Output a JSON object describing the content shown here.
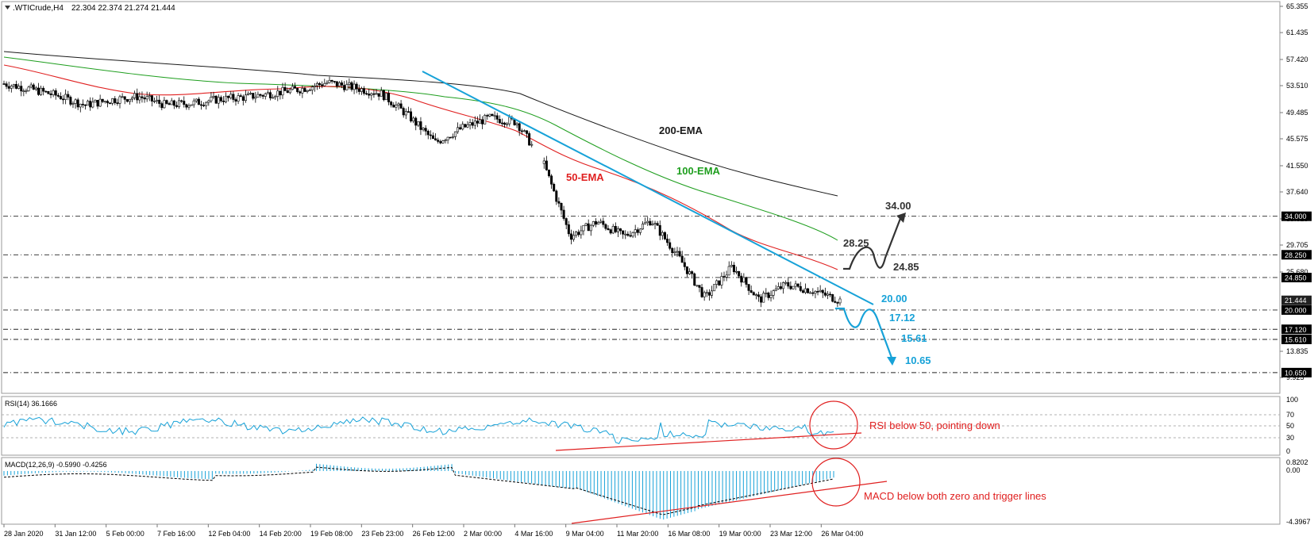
{
  "header": {
    "symbol": ".WTICrude,H4",
    "ohlc": "22.304 22.374 21.274 21.444"
  },
  "rsi": {
    "title": "RSI(14) 36.1666",
    "ticks": [
      "100",
      "70",
      "50",
      "30",
      "0"
    ]
  },
  "macd": {
    "title": "MACD(12,26,9) -0.5990 -0.4256",
    "ticks": [
      "0.8202",
      "0.00",
      "-4.3967"
    ]
  },
  "price_ticks": [
    "65.355",
    "61.435",
    "57.420",
    "53.510",
    "49.485",
    "45.575",
    "41.550",
    "37.640",
    "33.615",
    "29.705",
    "25.680",
    "21.444",
    "17.120",
    "13.835",
    "9.925"
  ],
  "level_labels": [
    "34.000",
    "28.250",
    "24.850",
    "21.444",
    "20.000",
    "17.120",
    "15.610",
    "10.650"
  ],
  "time_labels": [
    "28 Jan 2020",
    "31 Jan 12:00",
    "5 Feb 00:00",
    "7 Feb 16:00",
    "12 Feb 04:00",
    "14 Feb 20:00",
    "19 Feb 08:00",
    "23 Feb 23:00",
    "26 Feb 12:00",
    "2 Mar 00:00",
    "4 Mar 16:00",
    "9 Mar 04:00",
    "11 Mar 20:00",
    "16 Mar 08:00",
    "19 Mar 00:00",
    "23 Mar 12:00",
    "26 Mar 04:00"
  ],
  "annotations": {
    "ema200": "200-EMA",
    "ema100": "100-EMA",
    "ema50": "50-EMA",
    "up_target": "34.00",
    "r1": "28.25",
    "r2": "24.85",
    "s1": "20.00",
    "s2": "17.12",
    "s3": "15.61",
    "s4": "10.65",
    "rsi_note": "RSI below 50, pointing down",
    "macd_note": "MACD below both zero and trigger lines"
  },
  "colors": {
    "ema200": "#000000",
    "ema100": "#1e9e1e",
    "ema50": "#e02020",
    "trendline": "#17a2d8",
    "bull_scenario": "#333333",
    "bear_scenario": "#17a2d8",
    "rsi_line": "#17a2d8",
    "note_red": "#e02020"
  },
  "chart_data": {
    "type": "candlestick",
    "instrument": "WTI Crude, H4",
    "price_range": [
      9.925,
      65.355
    ],
    "horizontal_levels": [
      34.0,
      28.25,
      24.85,
      20.0,
      17.12,
      15.61,
      10.65
    ],
    "close_path": [
      [
        0,
        53.8
      ],
      [
        1,
        53.0
      ],
      [
        2,
        52.0
      ],
      [
        3,
        50.6
      ],
      [
        4,
        51.4
      ],
      [
        5,
        51.9
      ],
      [
        6,
        50.6
      ],
      [
        7,
        50.9
      ],
      [
        8,
        51.5
      ],
      [
        9,
        51.8
      ],
      [
        10,
        52.4
      ],
      [
        11,
        53.0
      ],
      [
        12,
        54.0
      ],
      [
        13,
        53.2
      ],
      [
        14,
        52.3
      ],
      [
        15,
        49.0
      ],
      [
        16,
        45.0
      ],
      [
        17,
        47.2
      ],
      [
        18,
        48.7
      ],
      [
        19,
        48.1
      ],
      [
        20,
        42.0
      ],
      [
        21,
        31.0
      ],
      [
        22,
        33.2
      ],
      [
        23,
        31.0
      ],
      [
        24,
        33.4
      ],
      [
        25,
        28.0
      ],
      [
        26,
        21.8
      ],
      [
        27,
        26.5
      ],
      [
        28,
        21.5
      ],
      [
        29,
        23.8
      ],
      [
        30,
        22.9
      ],
      [
        31,
        21.44
      ]
    ],
    "ema200": [
      [
        0,
        58.3
      ],
      [
        10,
        54.0
      ],
      [
        16,
        50.7
      ],
      [
        24,
        44.0
      ],
      [
        31,
        36.3
      ]
    ],
    "ema100": [
      [
        0,
        57.1
      ],
      [
        10,
        53.4
      ],
      [
        16,
        49.1
      ],
      [
        24,
        38.5
      ],
      [
        31,
        29.0
      ]
    ],
    "ema50": [
      [
        0,
        55.5
      ],
      [
        10,
        52.6
      ],
      [
        16,
        46.3
      ],
      [
        24,
        33.0
      ],
      [
        31,
        24.9
      ]
    ],
    "rsi": {
      "range": [
        0,
        100
      ],
      "levels": [
        70,
        50,
        30
      ],
      "last": 36.1666
    },
    "macd": {
      "range": [
        -4.3967,
        0.8202
      ],
      "main": -0.599,
      "signal": -0.4256
    }
  }
}
